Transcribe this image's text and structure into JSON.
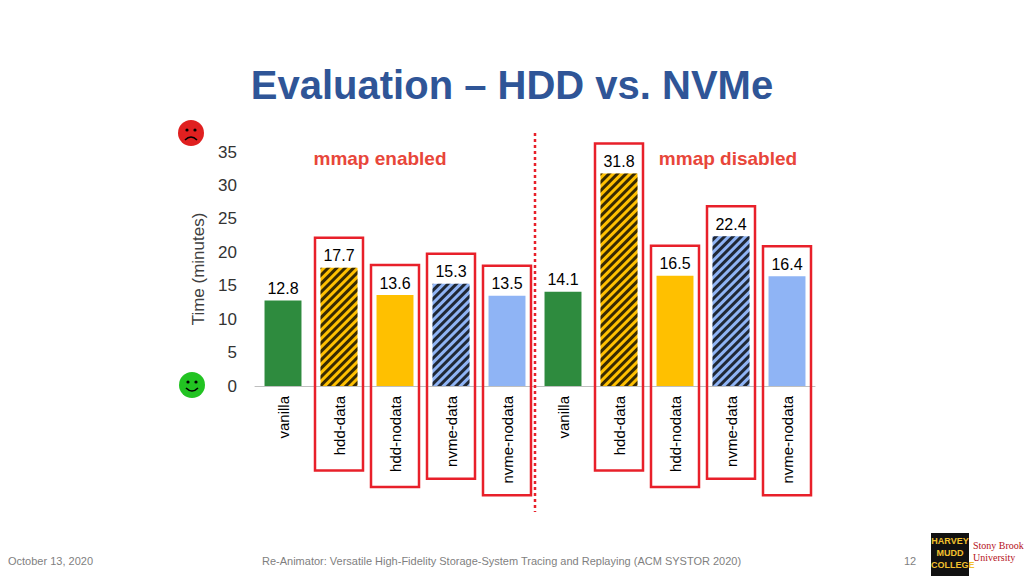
{
  "chart_data": {
    "type": "bar",
    "title": "Evaluation – HDD vs. NVMe",
    "y_label": "Time (minutes)",
    "categories": [
      "vanilla",
      "hdd-data",
      "hdd-nodata",
      "nvme-data",
      "nvme-nodata",
      "vanilla",
      "hdd-data",
      "hdd-nodata",
      "nvme-data",
      "nvme-nodata"
    ],
    "values": [
      12.8,
      17.7,
      13.6,
      15.3,
      13.5,
      14.1,
      31.8,
      16.5,
      22.4,
      16.4
    ],
    "colors": [
      "#2e8b3e",
      "#ffc000",
      "#ffc000",
      "#8fb4f5",
      "#8fb4f5",
      "#2e8b3e",
      "#ffc000",
      "#ffc000",
      "#8fb4f5",
      "#8fb4f5"
    ],
    "ylim": [
      0,
      35
    ],
    "yticks": [
      0,
      5,
      10,
      15,
      20,
      25,
      30,
      35
    ],
    "grid": false,
    "data_labels": true,
    "annotations": [
      "mmap enabled",
      "mmap disabled"
    ]
  },
  "footer": {
    "date": "October 13, 2020",
    "citation": "Re-Animator: Versatile High-Fidelity Storage-System Tracing and Replaying (ACM SYSTOR 2020)",
    "page": "12"
  },
  "logos": {
    "harvey_mudd": [
      "HARVEY",
      "MUDD",
      "COLLEGE"
    ],
    "stony_brook": [
      "Stony Brook",
      "University"
    ]
  }
}
